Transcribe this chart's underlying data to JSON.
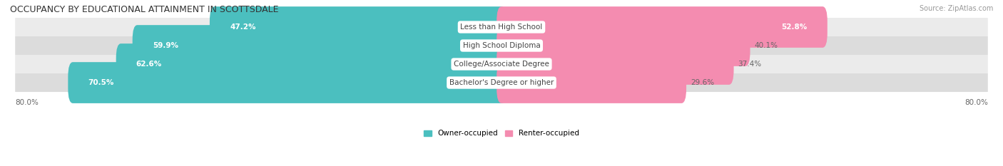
{
  "title": "OCCUPANCY BY EDUCATIONAL ATTAINMENT IN SCOTTSDALE",
  "source": "Source: ZipAtlas.com",
  "categories": [
    "Less than High School",
    "High School Diploma",
    "College/Associate Degree",
    "Bachelor's Degree or higher"
  ],
  "owner_values": [
    47.2,
    59.9,
    62.6,
    70.5
  ],
  "renter_values": [
    52.8,
    40.1,
    37.4,
    29.6
  ],
  "owner_color": "#4bbfbf",
  "renter_color": "#f48cb0",
  "row_bg_colors": [
    "#ebebeb",
    "#dcdcdc"
  ],
  "x_axis_left_label": "80.0%",
  "x_axis_right_label": "80.0%",
  "title_fontsize": 9,
  "label_fontsize": 7.5,
  "value_fontsize": 7.5,
  "legend_fontsize": 7.5,
  "source_fontsize": 7,
  "bar_scale": 80.0
}
